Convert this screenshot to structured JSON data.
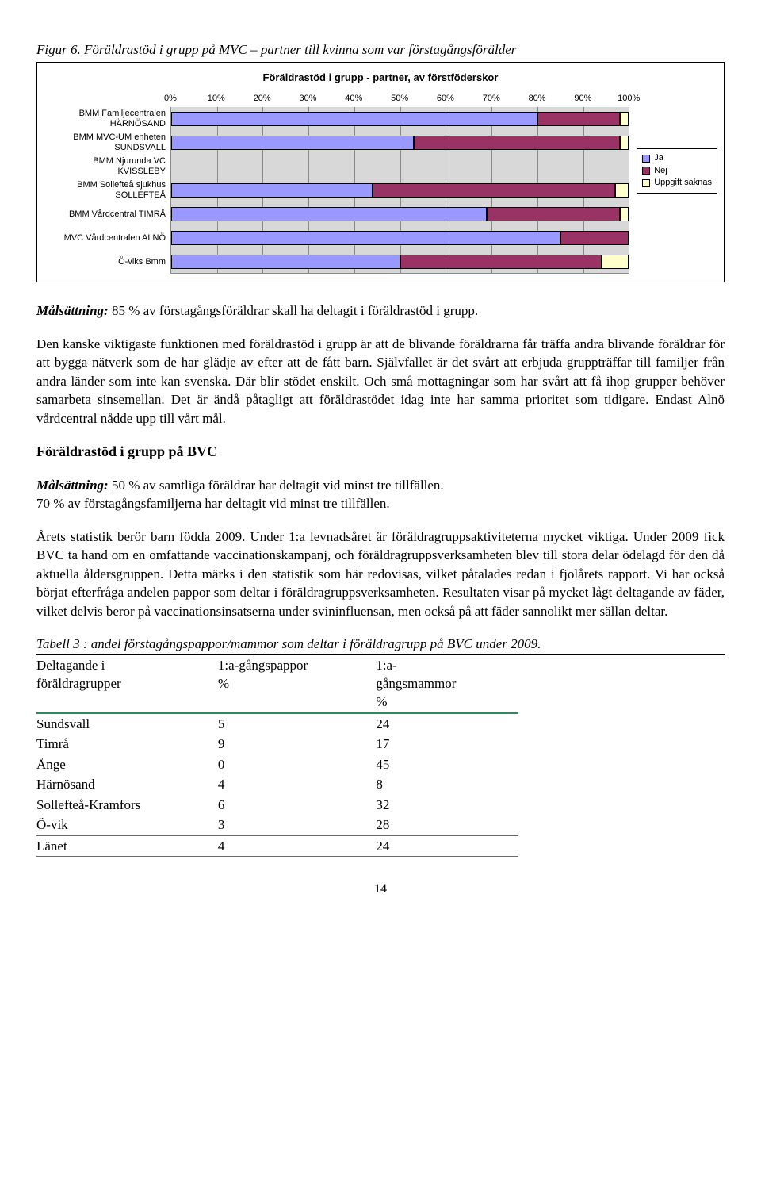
{
  "figure": {
    "caption": "Figur 6. Föräldrastöd i grupp på MVC – partner till kvinna som var förstagångsförälder",
    "chart": {
      "type": "stacked-bar-horizontal",
      "title": "Föräldrastöd i grupp - partner, av förstföderskor",
      "x_ticks": [
        "0%",
        "10%",
        "20%",
        "30%",
        "40%",
        "50%",
        "60%",
        "70%",
        "80%",
        "90%",
        "100%"
      ],
      "background_color": "#d8d8d8",
      "grid_color": "#888888",
      "categories": [
        {
          "line1": "BMM Familjecentralen",
          "line2": "HÄRNÖSAND"
        },
        {
          "line1": "BMM MVC-UM enheten",
          "line2": "SUNDSVALL"
        },
        {
          "line1": "BMM Njurunda VC",
          "line2": "KVISSLEBY"
        },
        {
          "line1": "BMM Sollefteå sjukhus",
          "line2": "SOLLEFTEÅ"
        },
        {
          "line1": "BMM Vårdcentral TIMRÅ",
          "line2": ""
        },
        {
          "line1": "MVC Vårdcentralen ALNÖ",
          "line2": ""
        },
        {
          "line1": "Ö-viks Bmm",
          "line2": ""
        }
      ],
      "series": [
        {
          "name": "Ja",
          "color": "#9999ff"
        },
        {
          "name": "Nej",
          "color": "#993366"
        },
        {
          "name": "Uppgift saknas",
          "color": "#ffffcc"
        }
      ],
      "values": [
        [
          80,
          18,
          2
        ],
        [
          53,
          45,
          2
        ],
        [
          0,
          0,
          0
        ],
        [
          44,
          53,
          3
        ],
        [
          69,
          29,
          2
        ],
        [
          85,
          15,
          0
        ],
        [
          50,
          44,
          6
        ]
      ]
    }
  },
  "paragraphs": {
    "goal1_label": "Målsättning:",
    "goal1_text": " 85 % av förstagångsföräldrar skall ha deltagit i föräldrastöd i grupp.",
    "p1": "Den kanske viktigaste funktionen med föräldrastöd i grupp är att de blivande föräldrarna får träffa andra blivande föräldrar för att bygga nätverk som de har glädje av efter att de fått barn. Självfallet är det svårt att erbjuda gruppträffar till familjer från andra länder som inte kan svenska. Där blir stödet enskilt. Och små mottagningar som har svårt att få ihop grupper behöver samarbeta sinsemellan. Det är ändå påtagligt att föräldrastödet idag inte har samma prioritet som tidigare. Endast Alnö vårdcentral nådde upp till vårt mål.",
    "h2": "Föräldrastöd i grupp på BVC",
    "goal2_label": "Målsättning:",
    "goal2_text": " 50 % av samtliga föräldrar har deltagit vid minst tre tillfällen.",
    "goal2b": "70 % av förstagångsfamiljerna har deltagit vid minst tre tillfällen.",
    "p2": "Årets statistik berör barn födda 2009. Under 1:a levnadsåret är föräldragruppsaktiviteterna mycket viktiga. Under 2009 fick BVC ta hand om en omfattande vaccinationskampanj, och föräldragruppsverksamheten blev till stora delar ödelagd för den då aktuella åldersgruppen. Detta märks i den statistik som här redovisas, vilket påtalades redan i fjolårets rapport. Vi har också börjat efterfråga andelen pappor som deltar i föräldragruppsverksamheten. Resultaten visar på mycket lågt deltagande av fäder, vilket delvis beror på vaccinationsinsatserna under svininfluensan, men också på att fäder sannolikt mer sällan deltar."
  },
  "table": {
    "caption": "Tabell 3 : andel förstagångspappor/mammor som deltar i föräldragrupp på BVC under 2009.",
    "columns": [
      {
        "h1": "Deltagande i",
        "h2": "föräldragrupper"
      },
      {
        "h1": "1:a-gångspappor",
        "h2": "%"
      },
      {
        "h1": "1:a-",
        "h2": "gångsmammor",
        "h3": "%"
      }
    ],
    "rows": [
      [
        "Sundsvall",
        "5",
        "24"
      ],
      [
        "Timrå",
        "9",
        "17"
      ],
      [
        "Ånge",
        "0",
        "45"
      ],
      [
        "Härnösand",
        "4",
        "8"
      ],
      [
        "Sollefteå-Kramfors",
        "6",
        "32"
      ],
      [
        "Ö-vik",
        "3",
        "28"
      ]
    ],
    "last_row": [
      "Länet",
      "4",
      "24"
    ]
  },
  "page_number": "14"
}
